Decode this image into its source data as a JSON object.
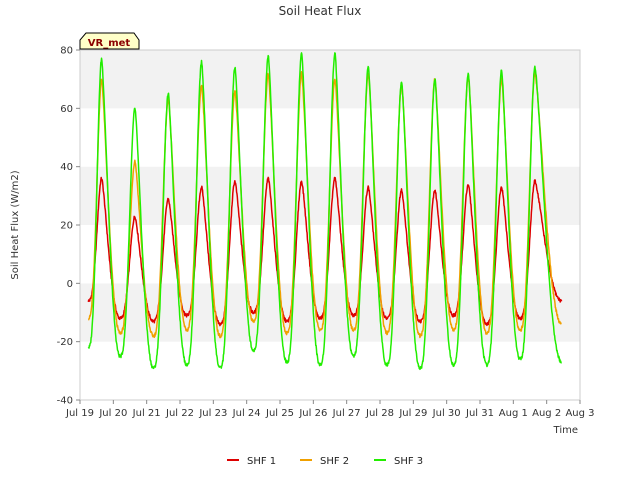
{
  "chart_data": {
    "type": "line",
    "title": "Soil Heat Flux",
    "xlabel": "Time",
    "ylabel": "Soil Heat Flux (W/m2)",
    "site_label": "VR_met",
    "ylim": [
      -40,
      80
    ],
    "yticks": [
      -40,
      -20,
      0,
      20,
      40,
      60,
      80
    ],
    "xlim": [
      0,
      15
    ],
    "xticks": [
      {
        "value": 0,
        "label": "Jul 19"
      },
      {
        "value": 1,
        "label": "Jul 20"
      },
      {
        "value": 2,
        "label": "Jul 21"
      },
      {
        "value": 3,
        "label": "Jul 22"
      },
      {
        "value": 4,
        "label": "Jul 23"
      },
      {
        "value": 5,
        "label": "Jul 24"
      },
      {
        "value": 6,
        "label": "Jul 25"
      },
      {
        "value": 7,
        "label": "Jul 26"
      },
      {
        "value": 8,
        "label": "Jul 27"
      },
      {
        "value": 9,
        "label": "Jul 28"
      },
      {
        "value": 10,
        "label": "Jul 29"
      },
      {
        "value": 11,
        "label": "Jul 30"
      },
      {
        "value": 12,
        "label": "Jul 31"
      },
      {
        "value": 13,
        "label": "Aug 1"
      },
      {
        "value": 14,
        "label": "Aug 2"
      },
      {
        "value": 15,
        "label": "Aug 3"
      }
    ],
    "x_start": 0.25,
    "x_end": 14.45,
    "peak_offset": 0.65,
    "trough_offset": 0.2,
    "series": [
      {
        "name": "SHF 1",
        "color": "#dd0000",
        "start_value": -6,
        "end_value": -6,
        "daily_max": [
          36,
          23,
          29,
          33,
          35,
          36,
          35,
          36,
          33,
          32,
          32,
          34,
          33,
          35
        ],
        "daily_min": [
          -12,
          -13,
          -11,
          -14,
          -10,
          -13,
          -12,
          -11,
          -12,
          -13,
          -11,
          -14,
          -12,
          -14
        ]
      },
      {
        "name": "SHF 2",
        "color": "#f0a000",
        "start_value": -12,
        "end_value": -14,
        "daily_max": [
          70,
          42,
          63,
          68,
          66,
          72,
          72,
          70,
          72,
          68,
          70,
          71,
          70,
          72
        ],
        "daily_min": [
          -17,
          -18,
          -16,
          -18,
          -13,
          -17,
          -16,
          -16,
          -17,
          -18,
          -16,
          -17,
          -16,
          -17
        ]
      },
      {
        "name": "SHF 3",
        "color": "#22ee00",
        "start_value": -22,
        "end_value": -27,
        "daily_max": [
          77,
          60,
          65,
          76,
          74,
          78,
          79,
          79,
          74,
          69,
          70,
          72,
          73,
          74
        ],
        "daily_min": [
          -25,
          -29,
          -28,
          -29,
          -23,
          -27,
          -28,
          -25,
          -28,
          -29,
          -28,
          -28,
          -26,
          -29
        ]
      }
    ]
  }
}
